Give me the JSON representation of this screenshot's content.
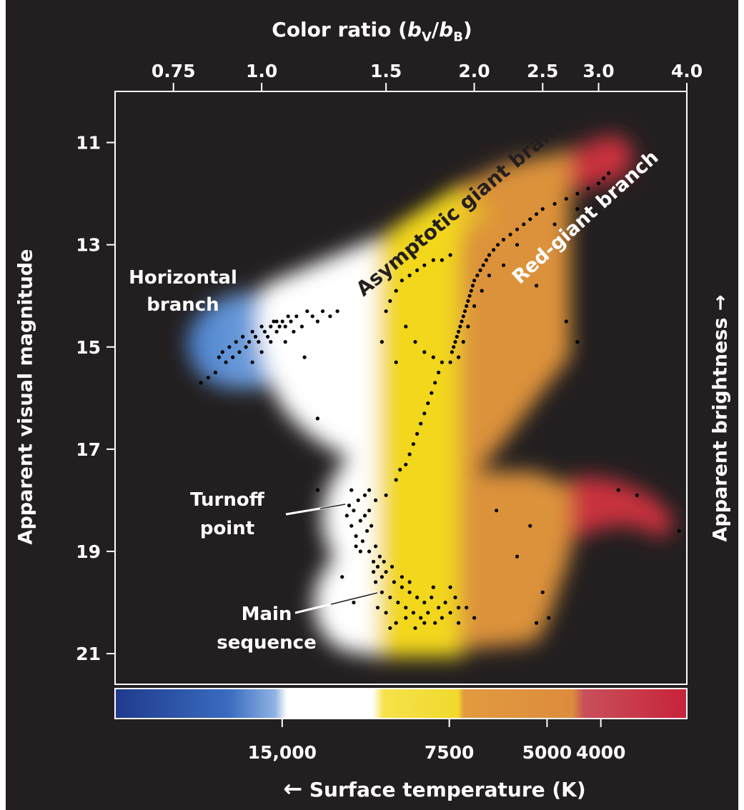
{
  "chart_data": {
    "type": "scatter",
    "title": "",
    "top_axis": {
      "label_prefix": "Color ratio (",
      "label_var1": "b",
      "label_sub1": "V",
      "label_mid": "/",
      "label_var2": "b",
      "label_sub2": "B",
      "label_suffix": ")",
      "ticks": [
        {
          "value": 0.75,
          "label": "0.75"
        },
        {
          "value": 1.0,
          "label": "1.0"
        },
        {
          "value": 1.5,
          "label": "1.5"
        },
        {
          "value": 2.0,
          "label": "2.0"
        },
        {
          "value": 2.5,
          "label": "2.5"
        },
        {
          "value": 3.0,
          "label": "3.0"
        },
        {
          "value": 4.0,
          "label": "4.0"
        }
      ],
      "scale": "log"
    },
    "ylabel": "Apparent visual magnitude",
    "ylim": [
      10.0,
      21.6
    ],
    "yticks": [
      11,
      13,
      15,
      17,
      19,
      21
    ],
    "y_inverted": true,
    "right_label": "Apparent brightness →",
    "bottom_axis": {
      "label": "Surface temperature (K)",
      "arrow": "←",
      "ticks": [
        {
          "value": 15000,
          "label": "15,000"
        },
        {
          "value": 7500,
          "label": "7500"
        },
        {
          "value": 5000,
          "label": "5000"
        },
        {
          "value": 4000,
          "label": "4000"
        }
      ]
    },
    "annotations": [
      {
        "text": "Horizontal branch"
      },
      {
        "text": "Asymptotic giant branch"
      },
      {
        "text": "Red-giant branch"
      },
      {
        "text": "Turnoff point"
      },
      {
        "text": "Main sequence"
      }
    ],
    "colors": {
      "background": "#231f20",
      "blue": "#4a7fc8",
      "white": "#ffffff",
      "yellow": "#f2d71c",
      "orange": "#dc923a",
      "red": "#c8323c",
      "dots": "#000000"
    },
    "points": {
      "horizontal_branch": [
        [
          0.82,
          15.7
        ],
        [
          0.84,
          15.6
        ],
        [
          0.86,
          15.5
        ],
        [
          0.87,
          15.2
        ],
        [
          0.88,
          15.1
        ],
        [
          0.89,
          15.3
        ],
        [
          0.9,
          15.0
        ],
        [
          0.91,
          15.2
        ],
        [
          0.92,
          14.9
        ],
        [
          0.93,
          15.1
        ],
        [
          0.94,
          14.8
        ],
        [
          0.95,
          15.0
        ],
        [
          0.96,
          14.9
        ],
        [
          0.97,
          14.7
        ],
        [
          0.98,
          14.8
        ],
        [
          0.99,
          14.9
        ],
        [
          1.0,
          14.6
        ],
        [
          1.01,
          14.7
        ],
        [
          1.02,
          14.8
        ],
        [
          1.03,
          14.6
        ],
        [
          1.04,
          14.5
        ],
        [
          1.05,
          14.7
        ],
        [
          1.06,
          14.6
        ],
        [
          1.07,
          14.5
        ],
        [
          1.08,
          14.6
        ],
        [
          1.09,
          14.4
        ],
        [
          1.1,
          14.5
        ],
        [
          1.12,
          14.4
        ],
        [
          1.14,
          14.6
        ],
        [
          1.16,
          14.3
        ],
        [
          1.18,
          14.4
        ],
        [
          1.2,
          14.5
        ],
        [
          1.22,
          14.3
        ],
        [
          1.25,
          14.4
        ],
        [
          1.28,
          14.3
        ],
        [
          1.03,
          14.9
        ],
        [
          1.05,
          14.5
        ],
        [
          1.0,
          15.1
        ],
        [
          0.97,
          15.3
        ],
        [
          1.15,
          15.2
        ],
        [
          1.08,
          14.9
        ],
        [
          1.11,
          14.7
        ],
        [
          1.2,
          16.4
        ]
      ],
      "red_giant_branch": [
        [
          1.85,
          15.3
        ],
        [
          1.86,
          15.1
        ],
        [
          1.87,
          15.0
        ],
        [
          1.88,
          14.9
        ],
        [
          1.89,
          14.8
        ],
        [
          1.9,
          14.7
        ],
        [
          1.91,
          14.6
        ],
        [
          1.92,
          14.5
        ],
        [
          1.93,
          14.4
        ],
        [
          1.94,
          14.3
        ],
        [
          1.95,
          14.2
        ],
        [
          1.96,
          14.1
        ],
        [
          1.97,
          14.0
        ],
        [
          1.98,
          13.9
        ],
        [
          1.99,
          13.8
        ],
        [
          2.0,
          13.7
        ],
        [
          2.02,
          13.6
        ],
        [
          2.04,
          13.5
        ],
        [
          2.06,
          13.4
        ],
        [
          2.08,
          13.3
        ],
        [
          2.1,
          13.2
        ],
        [
          2.13,
          13.1
        ],
        [
          2.16,
          13.0
        ],
        [
          2.2,
          12.9
        ],
        [
          2.25,
          12.8
        ],
        [
          2.3,
          12.7
        ],
        [
          2.35,
          12.6
        ],
        [
          2.4,
          12.5
        ],
        [
          2.45,
          12.4
        ],
        [
          2.5,
          12.3
        ],
        [
          2.6,
          12.2
        ],
        [
          2.7,
          12.1
        ],
        [
          2.8,
          12.0
        ],
        [
          2.9,
          11.9
        ],
        [
          3.0,
          11.8
        ],
        [
          3.05,
          11.7
        ],
        [
          3.1,
          11.6
        ],
        [
          1.9,
          15.2
        ],
        [
          1.93,
          14.9
        ],
        [
          1.96,
          14.6
        ],
        [
          2.0,
          14.2
        ],
        [
          2.05,
          13.9
        ],
        [
          2.1,
          13.6
        ],
        [
          2.2,
          13.4
        ],
        [
          2.3,
          13.0
        ],
        [
          2.6,
          12.6
        ],
        [
          2.8,
          12.3
        ],
        [
          2.45,
          13.8
        ],
        [
          2.7,
          14.5
        ],
        [
          2.8,
          14.9
        ]
      ],
      "asymptotic_giant_branch": [
        [
          1.5,
          14.3
        ],
        [
          1.52,
          14.1
        ],
        [
          1.55,
          13.9
        ],
        [
          1.58,
          13.7
        ],
        [
          1.62,
          13.6
        ],
        [
          1.66,
          13.5
        ],
        [
          1.7,
          13.4
        ],
        [
          1.75,
          13.3
        ],
        [
          1.8,
          13.3
        ],
        [
          1.85,
          13.2
        ],
        [
          1.6,
          14.6
        ],
        [
          1.65,
          14.9
        ],
        [
          1.7,
          15.1
        ],
        [
          1.75,
          15.2
        ],
        [
          1.48,
          14.9
        ],
        [
          1.55,
          15.3
        ]
      ],
      "subgiant_branch": [
        [
          1.55,
          17.6
        ],
        [
          1.57,
          17.4
        ],
        [
          1.6,
          17.3
        ],
        [
          1.62,
          17.1
        ],
        [
          1.64,
          16.9
        ],
        [
          1.66,
          16.7
        ],
        [
          1.68,
          16.5
        ],
        [
          1.7,
          16.3
        ],
        [
          1.72,
          16.1
        ],
        [
          1.74,
          15.9
        ],
        [
          1.76,
          15.7
        ],
        [
          1.78,
          15.5
        ],
        [
          1.8,
          15.3
        ],
        [
          1.5,
          17.9
        ],
        [
          1.45,
          18.0
        ],
        [
          1.42,
          17.8
        ]
      ],
      "turnoff": [
        [
          1.32,
          18.3
        ],
        [
          1.33,
          18.1
        ],
        [
          1.34,
          18.5
        ],
        [
          1.35,
          18.2
        ],
        [
          1.36,
          18.7
        ],
        [
          1.37,
          18.0
        ],
        [
          1.38,
          18.4
        ],
        [
          1.39,
          18.8
        ],
        [
          1.4,
          18.3
        ],
        [
          1.41,
          18.6
        ],
        [
          1.42,
          19.0
        ],
        [
          1.43,
          18.5
        ],
        [
          1.44,
          19.2
        ],
        [
          1.45,
          18.9
        ],
        [
          1.46,
          19.3
        ],
        [
          1.47,
          19.1
        ],
        [
          1.48,
          19.5
        ],
        [
          1.34,
          17.8
        ],
        [
          1.36,
          18.9
        ],
        [
          1.38,
          19.0
        ],
        [
          1.4,
          17.9
        ],
        [
          1.42,
          18.2
        ],
        [
          1.2,
          17.8
        ]
      ],
      "main_sequence": [
        [
          1.45,
          19.6
        ],
        [
          1.48,
          19.8
        ],
        [
          1.5,
          19.4
        ],
        [
          1.52,
          19.9
        ],
        [
          1.54,
          19.6
        ],
        [
          1.56,
          20.0
        ],
        [
          1.58,
          19.7
        ],
        [
          1.6,
          20.1
        ],
        [
          1.62,
          19.8
        ],
        [
          1.64,
          20.2
        ],
        [
          1.66,
          19.9
        ],
        [
          1.68,
          20.3
        ],
        [
          1.7,
          20.0
        ],
        [
          1.72,
          20.2
        ],
        [
          1.74,
          19.9
        ],
        [
          1.76,
          20.4
        ],
        [
          1.78,
          20.1
        ],
        [
          1.8,
          20.3
        ],
        [
          1.82,
          20.0
        ],
        [
          1.85,
          20.2
        ],
        [
          1.88,
          19.9
        ],
        [
          1.9,
          20.4
        ],
        [
          1.95,
          20.1
        ],
        [
          2.0,
          20.3
        ],
        [
          1.5,
          20.2
        ],
        [
          1.55,
          20.4
        ],
        [
          1.6,
          20.3
        ],
        [
          1.65,
          20.5
        ],
        [
          1.7,
          20.4
        ],
        [
          1.58,
          19.5
        ],
        [
          1.62,
          19.6
        ],
        [
          1.46,
          20.1
        ],
        [
          1.52,
          20.5
        ],
        [
          1.75,
          19.7
        ],
        [
          1.85,
          19.7
        ],
        [
          1.9,
          20.1
        ],
        [
          1.44,
          19.4
        ],
        [
          1.49,
          19.2
        ],
        [
          1.53,
          19.3
        ]
      ],
      "scattered": [
        [
          2.15,
          18.2
        ],
        [
          2.4,
          18.5
        ],
        [
          2.3,
          19.1
        ],
        [
          2.5,
          19.8
        ],
        [
          2.55,
          20.3
        ],
        [
          2.45,
          20.4
        ],
        [
          3.2,
          17.8
        ],
        [
          3.4,
          17.9
        ],
        [
          3.9,
          18.6
        ],
        [
          1.3,
          19.5
        ],
        [
          1.35,
          20.0
        ]
      ]
    }
  }
}
